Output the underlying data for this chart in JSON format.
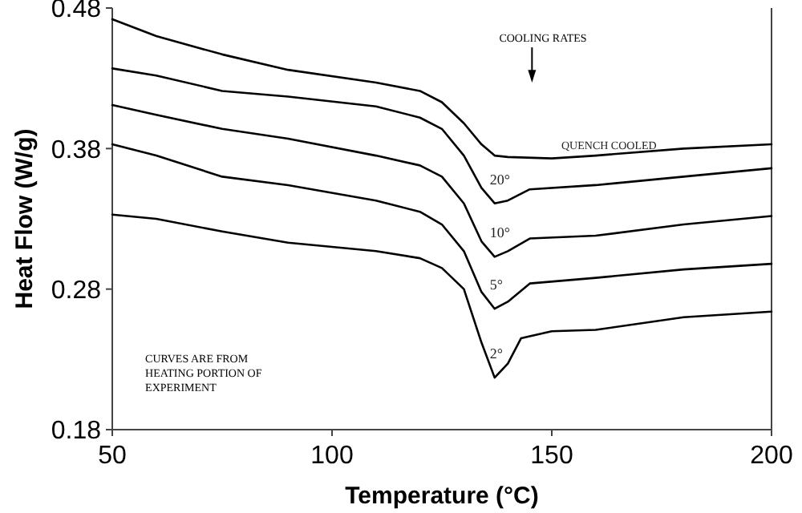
{
  "chart_data": {
    "type": "line",
    "xlabel": "Temperature (°C)",
    "ylabel": "Heat Flow (W/g)",
    "xlim": [
      50,
      200
    ],
    "ylim": [
      0.18,
      0.48
    ],
    "xticks": [
      50,
      100,
      150,
      200
    ],
    "yticks": [
      0.18,
      0.28,
      0.38,
      0.48
    ],
    "grid": false,
    "marker": "none",
    "line_style": "solid",
    "series": [
      {
        "name": "QUENCH COOLED",
        "color": "#000000",
        "x": [
          50,
          60,
          75,
          90,
          110,
          120,
          125,
          130,
          134,
          137,
          140,
          150,
          160,
          180,
          200
        ],
        "values": [
          0.472,
          0.46,
          0.447,
          0.436,
          0.427,
          0.421,
          0.413,
          0.398,
          0.383,
          0.375,
          0.374,
          0.373,
          0.375,
          0.38,
          0.383
        ]
      },
      {
        "name": "20°",
        "color": "#000000",
        "x": [
          50,
          60,
          75,
          90,
          110,
          120,
          125,
          130,
          134,
          137,
          140,
          145,
          160,
          180,
          200
        ],
        "values": [
          0.437,
          0.432,
          0.421,
          0.417,
          0.41,
          0.402,
          0.394,
          0.375,
          0.352,
          0.341,
          0.343,
          0.351,
          0.354,
          0.36,
          0.366
        ]
      },
      {
        "name": "10°",
        "color": "#000000",
        "x": [
          50,
          60,
          75,
          90,
          110,
          120,
          125,
          130,
          134,
          137,
          140,
          145,
          160,
          180,
          200
        ],
        "values": [
          0.411,
          0.404,
          0.394,
          0.387,
          0.375,
          0.368,
          0.36,
          0.341,
          0.314,
          0.303,
          0.307,
          0.316,
          0.318,
          0.326,
          0.332
        ]
      },
      {
        "name": "5°",
        "color": "#000000",
        "x": [
          50,
          60,
          75,
          90,
          110,
          120,
          125,
          130,
          134,
          137,
          140,
          145,
          160,
          180,
          200
        ],
        "values": [
          0.383,
          0.375,
          0.36,
          0.354,
          0.343,
          0.335,
          0.326,
          0.307,
          0.278,
          0.266,
          0.271,
          0.284,
          0.288,
          0.294,
          0.298
        ]
      },
      {
        "name": "2°",
        "color": "#000000",
        "x": [
          50,
          60,
          75,
          90,
          110,
          120,
          125,
          130,
          134,
          137,
          140,
          143,
          150,
          160,
          180,
          200
        ],
        "values": [
          0.333,
          0.33,
          0.321,
          0.313,
          0.307,
          0.302,
          0.295,
          0.28,
          0.242,
          0.217,
          0.227,
          0.245,
          0.25,
          0.251,
          0.26,
          0.264
        ]
      }
    ],
    "annotations": [
      "COOLING RATES",
      "CURVES ARE FROM HEATING PORTION OF EXPERIMENT"
    ]
  }
}
